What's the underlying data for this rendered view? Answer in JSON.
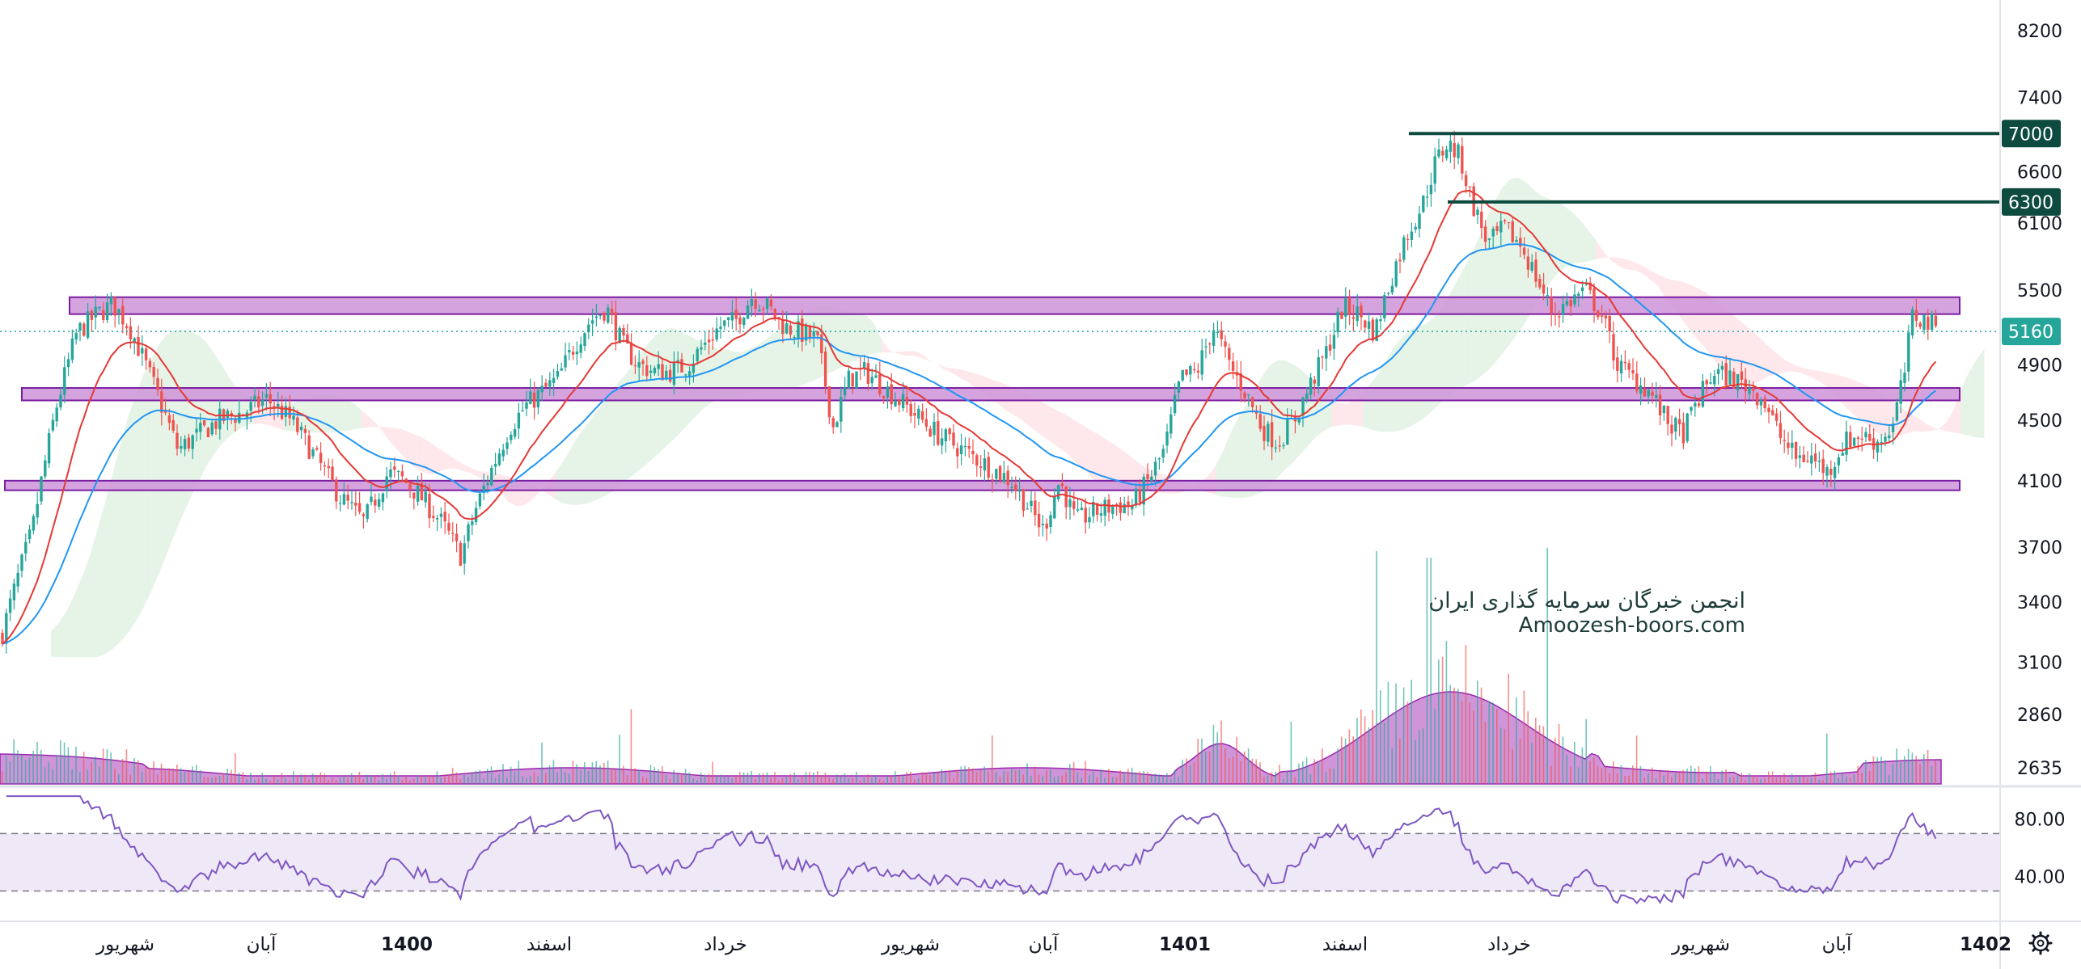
{
  "chart_data": [
    {
      "type": "candlestick",
      "price_axis": {
        "ticks": [
          "8200",
          "7400",
          "6600",
          "6100",
          "5500",
          "4900",
          "4500",
          "4100",
          "3700",
          "3400",
          "3100",
          "2860",
          "2635"
        ],
        "scale": "log",
        "ylim": [
          2560,
          8600
        ]
      },
      "time_axis": {
        "labels": [
          {
            "text": "شهریور",
            "bold": false
          },
          {
            "text": "آبان",
            "bold": false
          },
          {
            "text": "1400",
            "bold": true
          },
          {
            "text": "اسفند",
            "bold": false
          },
          {
            "text": "خرداد",
            "bold": false
          },
          {
            "text": "شهریور",
            "bold": false
          },
          {
            "text": "آبان",
            "bold": false
          },
          {
            "text": "1401",
            "bold": true
          },
          {
            "text": "اسفند",
            "bold": false
          },
          {
            "text": "خرداد",
            "bold": false
          },
          {
            "text": "شهریور",
            "bold": false
          },
          {
            "text": "آبان",
            "bold": false
          },
          {
            "text": "1402",
            "bold": true
          }
        ]
      },
      "current_price": {
        "value": 5160,
        "label": "5160"
      },
      "horizontal_lines": [
        {
          "value": 7000,
          "label": "7000"
        },
        {
          "value": 6300,
          "label": "6300"
        }
      ],
      "zones": [
        {
          "from": 5300,
          "to": 5440
        },
        {
          "from": 4640,
          "to": 4730
        },
        {
          "from": 4040,
          "to": 4100
        }
      ],
      "price_path": [
        [
          0,
          3200
        ],
        [
          40,
          3800
        ],
        [
          70,
          4600
        ],
        [
          95,
          5150
        ],
        [
          120,
          5300
        ],
        [
          140,
          5380
        ],
        [
          160,
          5200
        ],
        [
          180,
          4900
        ],
        [
          200,
          4600
        ],
        [
          220,
          4300
        ],
        [
          245,
          4400
        ],
        [
          270,
          4500
        ],
        [
          300,
          4550
        ],
        [
          330,
          4650
        ],
        [
          360,
          4500
        ],
        [
          390,
          4250
        ],
        [
          420,
          4000
        ],
        [
          450,
          3850
        ],
        [
          480,
          4150
        ],
        [
          500,
          4100
        ],
        [
          520,
          4000
        ],
        [
          545,
          3850
        ],
        [
          570,
          3650
        ],
        [
          590,
          3950
        ],
        [
          610,
          4200
        ],
        [
          630,
          4450
        ],
        [
          650,
          4600
        ],
        [
          670,
          4700
        ],
        [
          690,
          4800
        ],
        [
          710,
          5050
        ],
        [
          730,
          5250
        ],
        [
          750,
          5350
        ],
        [
          770,
          5050
        ],
        [
          790,
          4900
        ],
        [
          810,
          4850
        ],
        [
          830,
          4850
        ],
        [
          850,
          4900
        ],
        [
          870,
          5050
        ],
        [
          890,
          5200
        ],
        [
          910,
          5250
        ],
        [
          930,
          5450
        ],
        [
          950,
          5350
        ],
        [
          970,
          5200
        ],
        [
          990,
          5150
        ],
        [
          1010,
          5100
        ],
        [
          1030,
          4450
        ],
        [
          1050,
          4800
        ],
        [
          1070,
          4850
        ],
        [
          1100,
          4700
        ],
        [
          1130,
          4550
        ],
        [
          1160,
          4400
        ],
        [
          1190,
          4300
        ],
        [
          1220,
          4200
        ],
        [
          1250,
          4100
        ],
        [
          1270,
          3950
        ],
        [
          1290,
          3800
        ],
        [
          1310,
          4100
        ],
        [
          1330,
          3850
        ],
        [
          1350,
          3900
        ],
        [
          1380,
          3950
        ],
        [
          1400,
          3950
        ],
        [
          1420,
          4100
        ],
        [
          1440,
          4300
        ],
        [
          1460,
          4800
        ],
        [
          1480,
          4850
        ],
        [
          1500,
          5200
        ],
        [
          1520,
          4900
        ],
        [
          1540,
          4700
        ],
        [
          1560,
          4450
        ],
        [
          1580,
          4350
        ],
        [
          1600,
          4500
        ],
        [
          1620,
          4750
        ],
        [
          1640,
          5000
        ],
        [
          1660,
          5350
        ],
        [
          1680,
          5300
        ],
        [
          1700,
          5150
        ],
        [
          1720,
          5600
        ],
        [
          1740,
          6000
        ],
        [
          1760,
          6300
        ],
        [
          1775,
          6700
        ],
        [
          1790,
          6900
        ],
        [
          1805,
          6750
        ],
        [
          1820,
          6300
        ],
        [
          1840,
          5900
        ],
        [
          1860,
          6050
        ],
        [
          1880,
          5900
        ],
        [
          1900,
          5600
        ],
        [
          1920,
          5300
        ],
        [
          1940,
          5400
        ],
        [
          1960,
          5500
        ],
        [
          1980,
          5300
        ],
        [
          2000,
          4900
        ],
        [
          2020,
          4800
        ],
        [
          2040,
          4700
        ],
        [
          2060,
          4500
        ],
        [
          2080,
          4400
        ],
        [
          2100,
          4650
        ],
        [
          2120,
          4850
        ],
        [
          2140,
          4800
        ],
        [
          2160,
          4750
        ],
        [
          2180,
          4650
        ],
        [
          2200,
          4400
        ],
        [
          2220,
          4250
        ],
        [
          2240,
          4250
        ],
        [
          2260,
          4150
        ],
        [
          2280,
          4350
        ],
        [
          2300,
          4400
        ],
        [
          2320,
          4350
        ],
        [
          2340,
          4450
        ],
        [
          2355,
          4850
        ],
        [
          2365,
          5300
        ],
        [
          2380,
          5250
        ],
        [
          2395,
          5200
        ]
      ],
      "rsi_ticks": [
        "80.00",
        "40.00"
      ],
      "watermark": {
        "line1": "انجمن خبرگان سرمایه گذاری ایران",
        "line2": "Amoozesh-boors.com"
      },
      "colors": {
        "up": "#26a69a",
        "down": "#ef5350",
        "ema_fast": "#e53935",
        "ema_slow": "#2196f3",
        "zone_fill": "#ce93d8",
        "zone_border": "#7b1fa2",
        "level_line": "#0d4a40",
        "rsi_line": "#7e57c2",
        "rsi_band": "#ede7f6",
        "volume_area": "#ba68c8",
        "price_badge": "#26a69a"
      }
    }
  ]
}
